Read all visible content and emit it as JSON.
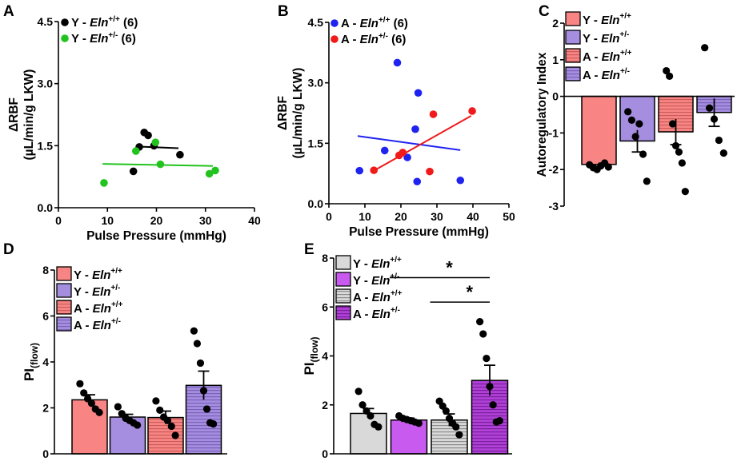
{
  "chart_data": [
    {
      "panel": "A",
      "type": "scatter",
      "xlabel": "Pulse Pressure (mmHg)",
      "ylabel_line1": "ΔRBF",
      "ylabel_line2": "(µL/min/g LKW)",
      "xlim": [
        0,
        40
      ],
      "ylim": [
        0,
        4.5
      ],
      "xticks": [
        "0",
        "10",
        "20",
        "30",
        "40"
      ],
      "yticks": [
        "0.0",
        "1.5",
        "3.0",
        "4.5"
      ],
      "series": [
        {
          "name_prefix": "Y - ",
          "name_gene": "Eln",
          "name_sup": "+/+",
          "name_n": " (6)",
          "color": "#000000",
          "x": [
            15.3,
            16.5,
            17.5,
            18.3,
            19.5,
            24.8
          ],
          "y": [
            0.88,
            1.47,
            1.82,
            1.75,
            1.5,
            1.28
          ],
          "fit": [
            [
              16.0,
              1.48
            ],
            [
              24.5,
              1.44
            ]
          ]
        },
        {
          "name_prefix": "Y - ",
          "name_gene": "Eln",
          "name_sup": "+/-",
          "name_n": " (6)",
          "color": "#22c31e",
          "x": [
            9.3,
            15.8,
            19.8,
            20.8,
            30.8,
            32.0
          ],
          "y": [
            0.6,
            1.37,
            1.58,
            1.05,
            0.82,
            0.9
          ],
          "fit": [
            [
              9.0,
              1.06
            ],
            [
              31.5,
              1.01
            ]
          ]
        }
      ]
    },
    {
      "panel": "B",
      "type": "scatter",
      "xlabel": "Pulse Pressure (mmHg)",
      "ylabel_line1": "ΔRBF",
      "ylabel_line2": "(µL/min/g LKW)",
      "xlim": [
        0,
        50
      ],
      "ylim": [
        0,
        4.5
      ],
      "xticks": [
        "0",
        "10",
        "20",
        "30",
        "40",
        "50"
      ],
      "yticks": [
        "0.0",
        "1.5",
        "3.0",
        "4.5"
      ],
      "series": [
        {
          "name_prefix": "A - ",
          "name_gene": "Eln",
          "name_sup": "+/+",
          "name_n": " (6)",
          "color": "#1f23f0",
          "x": [
            8.5,
            15.5,
            19.0,
            21.8,
            24.0,
            24.5,
            24.8,
            36.5
          ],
          "y": [
            0.82,
            1.32,
            3.5,
            1.15,
            1.85,
            0.55,
            2.75,
            0.58
          ],
          "fit": [
            [
              8.0,
              1.68
            ],
            [
              36.5,
              1.33
            ]
          ]
        },
        {
          "name_prefix": "A - ",
          "name_gene": "Eln",
          "name_sup": "+/-",
          "name_n": " (6)",
          "color": "#f01a1a",
          "x": [
            12.5,
            19.5,
            20.5,
            28.0,
            29.0,
            39.8
          ],
          "y": [
            0.83,
            1.2,
            1.27,
            0.8,
            2.22,
            2.3
          ],
          "fit": [
            [
              12.5,
              0.82
            ],
            [
              39.5,
              2.18
            ]
          ]
        }
      ]
    },
    {
      "panel": "C",
      "type": "bar",
      "ylabel": "Autoregulatory Index",
      "ylim": [
        -3,
        2
      ],
      "yticks": [
        "-3",
        "-2",
        "-1",
        "0",
        "1",
        "2"
      ],
      "categories": [
        "Y - Eln+/+",
        "Y - Eln+/-",
        "A - Eln+/+",
        "A - Eln+/-"
      ],
      "values": [
        -1.86,
        -1.22,
        -0.97,
        -0.44
      ],
      "sem": [
        0.05,
        0.3,
        0.35,
        0.38
      ],
      "points": [
        [
          -1.87,
          -1.95,
          -2.0,
          -1.9,
          -1.82,
          -1.93
        ],
        [
          -0.42,
          -0.65,
          -1.1,
          -0.75,
          -1.58,
          -2.32
        ],
        [
          0.7,
          0.55,
          -0.75,
          -1.35,
          -1.52,
          -1.82,
          -2.6
        ],
        [
          1.33,
          -0.32,
          -0.62,
          -1.2,
          -1.55
        ]
      ],
      "legend": [
        {
          "prefix": "Y - ",
          "gene": "Eln",
          "sup": "+/+"
        },
        {
          "prefix": "Y - ",
          "gene": "Eln",
          "sup": "+/-"
        },
        {
          "prefix": "A - ",
          "gene": "Eln",
          "sup": "+/+"
        },
        {
          "prefix": "A - ",
          "gene": "Eln",
          "sup": "+/-"
        }
      ]
    },
    {
      "panel": "D",
      "type": "bar",
      "ylabel_main": "PI",
      "ylabel_sub": "(flow)",
      "ylim": [
        0,
        8
      ],
      "yticks": [
        "0",
        "2",
        "4",
        "6",
        "8"
      ],
      "categories": [
        "Y - Eln+/+",
        "Y - Eln+/-",
        "A - Eln+/+",
        "A - Eln+/-"
      ],
      "values": [
        2.35,
        1.6,
        1.58,
        2.98
      ],
      "sem": [
        0.22,
        0.12,
        0.28,
        0.62
      ],
      "points": [
        [
          3.05,
          2.65,
          2.4,
          2.2,
          1.95,
          1.8
        ],
        [
          2.05,
          1.75,
          1.55,
          1.45,
          1.35,
          1.25
        ],
        [
          2.3,
          1.9,
          1.6,
          1.45,
          1.2,
          0.8
        ],
        [
          5.35,
          4.8,
          3.95,
          2.75,
          1.95,
          1.35,
          1.3
        ]
      ],
      "legend": [
        {
          "prefix": "Y - ",
          "gene": "Eln",
          "sup": "+/+"
        },
        {
          "prefix": "Y - ",
          "gene": "Eln",
          "sup": "+/-"
        },
        {
          "prefix": "A - ",
          "gene": "Eln",
          "sup": "+/+"
        },
        {
          "prefix": "A - ",
          "gene": "Eln",
          "sup": "+/-"
        }
      ]
    },
    {
      "panel": "E",
      "type": "bar",
      "ylabel_main": "PI",
      "ylabel_sub": "(flow)",
      "ylim": [
        0,
        8
      ],
      "yticks": [
        "0",
        "2",
        "4",
        "6",
        "8"
      ],
      "categories": [
        "Y - Eln+/+",
        "Y - Eln+/-",
        "A - Eln+/+",
        "A - Eln+/-"
      ],
      "values": [
        1.65,
        1.38,
        1.38,
        3.0
      ],
      "sem": [
        0.2,
        0.08,
        0.25,
        0.62
      ],
      "points": [
        [
          2.55,
          2.0,
          1.75,
          1.55,
          1.2,
          1.1
        ],
        [
          1.55,
          1.45,
          1.4,
          1.35,
          1.3,
          1.25
        ],
        [
          2.15,
          1.95,
          1.75,
          1.45,
          1.25,
          1.1,
          0.78
        ],
        [
          5.4,
          4.9,
          3.9,
          2.75,
          2.0,
          1.3,
          1.35
        ]
      ],
      "significance": [
        {
          "from": 1,
          "to": 3,
          "y": 7.2,
          "label": "*"
        },
        {
          "from": 2,
          "to": 3,
          "y": 6.2,
          "label": "*"
        }
      ],
      "legend": [
        {
          "prefix": "Y - ",
          "gene": "Eln",
          "sup": "+/+"
        },
        {
          "prefix": "Y - ",
          "gene": "Eln",
          "sup": "+/-"
        },
        {
          "prefix": "A - ",
          "gene": "Eln",
          "sup": "+/+"
        },
        {
          "prefix": "A - ",
          "gene": "Eln",
          "sup": "+/-"
        }
      ]
    }
  ],
  "panel_labels": [
    "A",
    "B",
    "C",
    "D",
    "E"
  ],
  "colors": {
    "y_wt": "#f88583",
    "y_het": "#a58de0",
    "a_wt": "#f88583",
    "a_het": "#a58de0",
    "e_y_wt": "#d9d9d9",
    "e_y_het": "#c85af0",
    "e_a_wt": "#d9d9d9",
    "e_a_het": "#b041d6"
  }
}
